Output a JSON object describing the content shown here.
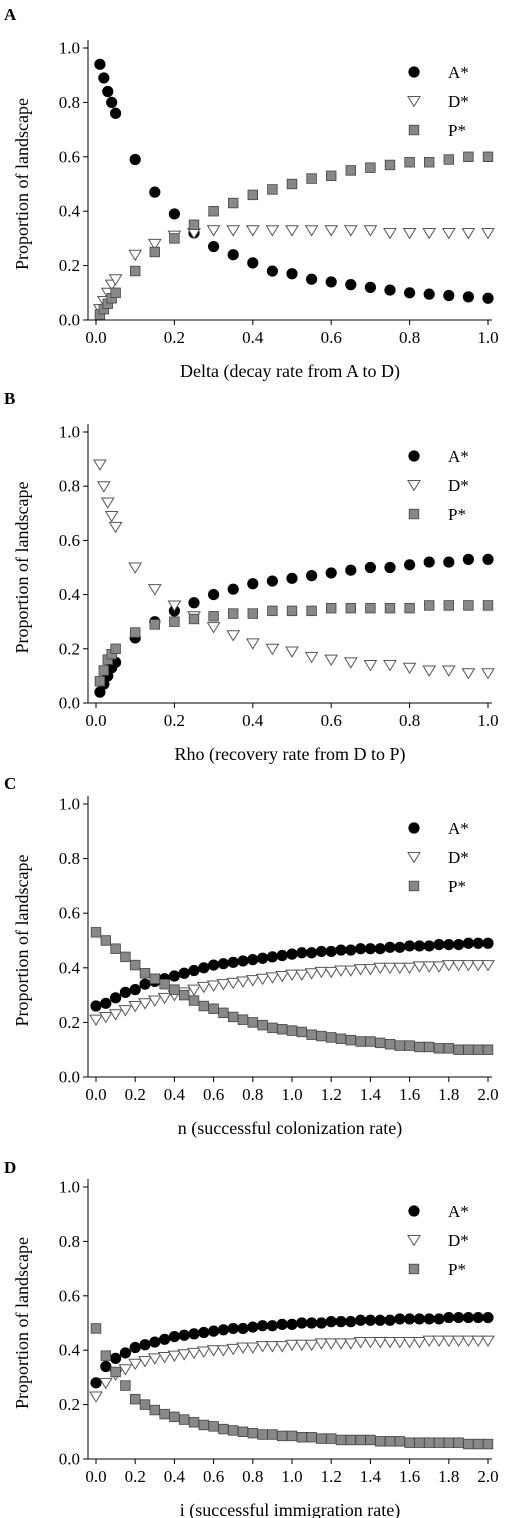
{
  "chart_data": [
    {
      "panel": "A",
      "type": "scatter",
      "xlabel": "Delta (decay rate from A to D)",
      "ylabel": "Proportion of landscape",
      "xlim": [
        0,
        1.0
      ],
      "ylim": [
        0,
        1.0
      ],
      "xticks": [
        "0.0",
        "0.2",
        "0.4",
        "0.6",
        "0.8",
        "1.0"
      ],
      "yticks": [
        "0.0",
        "0.2",
        "0.4",
        "0.6",
        "0.8",
        "1.0"
      ],
      "legend_position": "top-right",
      "series": [
        {
          "name": "A*",
          "marker": "circle",
          "color": "#000000",
          "x": [
            0.01,
            0.02,
            0.03,
            0.04,
            0.05,
            0.1,
            0.15,
            0.2,
            0.25,
            0.3,
            0.35,
            0.4,
            0.45,
            0.5,
            0.55,
            0.6,
            0.65,
            0.7,
            0.75,
            0.8,
            0.85,
            0.9,
            0.95,
            1.0
          ],
          "y": [
            0.94,
            0.89,
            0.84,
            0.8,
            0.76,
            0.59,
            0.47,
            0.39,
            0.32,
            0.27,
            0.24,
            0.21,
            0.18,
            0.17,
            0.15,
            0.14,
            0.13,
            0.12,
            0.11,
            0.1,
            0.095,
            0.09,
            0.085,
            0.08
          ]
        },
        {
          "name": "D*",
          "marker": "triangle-down",
          "color": "#ffffff",
          "x": [
            0.01,
            0.02,
            0.03,
            0.04,
            0.05,
            0.1,
            0.15,
            0.2,
            0.25,
            0.3,
            0.35,
            0.4,
            0.45,
            0.5,
            0.55,
            0.6,
            0.65,
            0.7,
            0.75,
            0.8,
            0.85,
            0.9,
            0.95,
            1.0
          ],
          "y": [
            0.04,
            0.07,
            0.1,
            0.13,
            0.15,
            0.24,
            0.28,
            0.31,
            0.32,
            0.33,
            0.33,
            0.33,
            0.33,
            0.33,
            0.33,
            0.33,
            0.33,
            0.33,
            0.32,
            0.32,
            0.32,
            0.32,
            0.32,
            0.32
          ]
        },
        {
          "name": "P*",
          "marker": "square",
          "color": "#888888",
          "x": [
            0.01,
            0.02,
            0.03,
            0.04,
            0.05,
            0.1,
            0.15,
            0.2,
            0.25,
            0.3,
            0.35,
            0.4,
            0.45,
            0.5,
            0.55,
            0.6,
            0.65,
            0.7,
            0.75,
            0.8,
            0.85,
            0.9,
            0.95,
            1.0
          ],
          "y": [
            0.02,
            0.04,
            0.06,
            0.08,
            0.1,
            0.18,
            0.25,
            0.3,
            0.35,
            0.4,
            0.43,
            0.46,
            0.48,
            0.5,
            0.52,
            0.53,
            0.55,
            0.56,
            0.57,
            0.58,
            0.58,
            0.59,
            0.6,
            0.6
          ]
        }
      ]
    },
    {
      "panel": "B",
      "type": "scatter",
      "xlabel": "Rho (recovery rate from D to P)",
      "ylabel": "Proportion of landscape",
      "xlim": [
        0,
        1.0
      ],
      "ylim": [
        0,
        1.0
      ],
      "xticks": [
        "0.0",
        "0.2",
        "0.4",
        "0.6",
        "0.8",
        "1.0"
      ],
      "yticks": [
        "0.0",
        "0.2",
        "0.4",
        "0.6",
        "0.8",
        "1.0"
      ],
      "legend_position": "top-right",
      "series": [
        {
          "name": "A*",
          "marker": "circle",
          "color": "#000000",
          "x": [
            0.01,
            0.02,
            0.03,
            0.04,
            0.05,
            0.1,
            0.15,
            0.2,
            0.25,
            0.3,
            0.35,
            0.4,
            0.45,
            0.5,
            0.55,
            0.6,
            0.65,
            0.7,
            0.75,
            0.8,
            0.85,
            0.9,
            0.95,
            1.0
          ],
          "y": [
            0.04,
            0.07,
            0.1,
            0.13,
            0.15,
            0.24,
            0.3,
            0.34,
            0.37,
            0.4,
            0.42,
            0.44,
            0.45,
            0.46,
            0.47,
            0.48,
            0.49,
            0.5,
            0.5,
            0.51,
            0.52,
            0.52,
            0.53,
            0.53
          ]
        },
        {
          "name": "D*",
          "marker": "triangle-down",
          "color": "#ffffff",
          "x": [
            0.01,
            0.02,
            0.03,
            0.04,
            0.05,
            0.1,
            0.15,
            0.2,
            0.25,
            0.3,
            0.35,
            0.4,
            0.45,
            0.5,
            0.55,
            0.6,
            0.65,
            0.7,
            0.75,
            0.8,
            0.85,
            0.9,
            0.95,
            1.0
          ],
          "y": [
            0.88,
            0.8,
            0.74,
            0.69,
            0.65,
            0.5,
            0.42,
            0.36,
            0.32,
            0.28,
            0.25,
            0.22,
            0.2,
            0.19,
            0.17,
            0.16,
            0.15,
            0.14,
            0.14,
            0.13,
            0.12,
            0.12,
            0.11,
            0.11
          ]
        },
        {
          "name": "P*",
          "marker": "square",
          "color": "#888888",
          "x": [
            0.01,
            0.02,
            0.03,
            0.04,
            0.05,
            0.1,
            0.15,
            0.2,
            0.25,
            0.3,
            0.35,
            0.4,
            0.45,
            0.5,
            0.55,
            0.6,
            0.65,
            0.7,
            0.75,
            0.8,
            0.85,
            0.9,
            0.95,
            1.0
          ],
          "y": [
            0.08,
            0.12,
            0.16,
            0.18,
            0.2,
            0.26,
            0.29,
            0.3,
            0.31,
            0.32,
            0.33,
            0.33,
            0.34,
            0.34,
            0.34,
            0.35,
            0.35,
            0.35,
            0.35,
            0.35,
            0.36,
            0.36,
            0.36,
            0.36
          ]
        }
      ]
    },
    {
      "panel": "C",
      "type": "scatter",
      "xlabel": "n (successful colonization rate)",
      "ylabel": "Proportion of landscape",
      "xlim": [
        0,
        2.0
      ],
      "ylim": [
        0,
        1.0
      ],
      "xticks": [
        "0.0",
        "0.2",
        "0.4",
        "0.6",
        "0.8",
        "1.0",
        "1.2",
        "1.4",
        "1.6",
        "1.8",
        "2.0"
      ],
      "yticks": [
        "0.0",
        "0.2",
        "0.4",
        "0.6",
        "0.8",
        "1.0"
      ],
      "legend_position": "top-right",
      "series": [
        {
          "name": "A*",
          "marker": "circle",
          "color": "#000000",
          "x": [
            0.0,
            0.05,
            0.1,
            0.15,
            0.2,
            0.25,
            0.3,
            0.35,
            0.4,
            0.45,
            0.5,
            0.55,
            0.6,
            0.65,
            0.7,
            0.75,
            0.8,
            0.85,
            0.9,
            0.95,
            1.0,
            1.05,
            1.1,
            1.15,
            1.2,
            1.25,
            1.3,
            1.35,
            1.4,
            1.45,
            1.5,
            1.55,
            1.6,
            1.65,
            1.7,
            1.75,
            1.8,
            1.85,
            1.9,
            1.95,
            2.0
          ],
          "y": [
            0.26,
            0.27,
            0.29,
            0.31,
            0.32,
            0.34,
            0.35,
            0.36,
            0.37,
            0.38,
            0.39,
            0.4,
            0.41,
            0.415,
            0.42,
            0.425,
            0.43,
            0.435,
            0.44,
            0.445,
            0.45,
            0.455,
            0.455,
            0.46,
            0.46,
            0.465,
            0.465,
            0.47,
            0.47,
            0.47,
            0.475,
            0.475,
            0.48,
            0.48,
            0.48,
            0.485,
            0.485,
            0.485,
            0.49,
            0.49,
            0.49
          ]
        },
        {
          "name": "D*",
          "marker": "triangle-down",
          "color": "#ffffff",
          "x": [
            0.0,
            0.05,
            0.1,
            0.15,
            0.2,
            0.25,
            0.3,
            0.35,
            0.4,
            0.45,
            0.5,
            0.55,
            0.6,
            0.65,
            0.7,
            0.75,
            0.8,
            0.85,
            0.9,
            0.95,
            1.0,
            1.05,
            1.1,
            1.15,
            1.2,
            1.25,
            1.3,
            1.35,
            1.4,
            1.45,
            1.5,
            1.55,
            1.6,
            1.65,
            1.7,
            1.75,
            1.8,
            1.85,
            1.9,
            1.95,
            2.0
          ],
          "y": [
            0.21,
            0.22,
            0.23,
            0.245,
            0.26,
            0.27,
            0.28,
            0.29,
            0.3,
            0.31,
            0.32,
            0.33,
            0.335,
            0.34,
            0.345,
            0.35,
            0.355,
            0.36,
            0.365,
            0.37,
            0.375,
            0.375,
            0.38,
            0.385,
            0.385,
            0.39,
            0.39,
            0.395,
            0.395,
            0.4,
            0.4,
            0.4,
            0.4,
            0.405,
            0.405,
            0.405,
            0.41,
            0.41,
            0.41,
            0.41,
            0.41
          ]
        },
        {
          "name": "P*",
          "marker": "square",
          "color": "#888888",
          "x": [
            0.0,
            0.05,
            0.1,
            0.15,
            0.2,
            0.25,
            0.3,
            0.35,
            0.4,
            0.45,
            0.5,
            0.55,
            0.6,
            0.65,
            0.7,
            0.75,
            0.8,
            0.85,
            0.9,
            0.95,
            1.0,
            1.05,
            1.1,
            1.15,
            1.2,
            1.25,
            1.3,
            1.35,
            1.4,
            1.45,
            1.5,
            1.55,
            1.6,
            1.65,
            1.7,
            1.75,
            1.8,
            1.85,
            1.9,
            1.95,
            2.0
          ],
          "y": [
            0.53,
            0.5,
            0.47,
            0.44,
            0.41,
            0.38,
            0.36,
            0.34,
            0.32,
            0.3,
            0.28,
            0.26,
            0.25,
            0.235,
            0.22,
            0.21,
            0.2,
            0.19,
            0.18,
            0.175,
            0.17,
            0.165,
            0.155,
            0.15,
            0.145,
            0.14,
            0.135,
            0.13,
            0.13,
            0.125,
            0.12,
            0.115,
            0.115,
            0.11,
            0.11,
            0.105,
            0.105,
            0.1,
            0.1,
            0.1,
            0.1
          ]
        }
      ]
    },
    {
      "panel": "D",
      "type": "scatter",
      "xlabel": "i (successful immigration rate)",
      "ylabel": "Proportion of landscape",
      "xlim": [
        0,
        2.0
      ],
      "ylim": [
        0,
        1.0
      ],
      "xticks": [
        "0.0",
        "0.2",
        "0.4",
        "0.6",
        "0.8",
        "1.0",
        "1.2",
        "1.4",
        "1.6",
        "1.8",
        "2.0"
      ],
      "yticks": [
        "0.0",
        "0.2",
        "0.4",
        "0.6",
        "0.8",
        "1.0"
      ],
      "legend_position": "top-right",
      "series": [
        {
          "name": "A*",
          "marker": "circle",
          "color": "#000000",
          "x": [
            0.0,
            0.05,
            0.1,
            0.15,
            0.2,
            0.25,
            0.3,
            0.35,
            0.4,
            0.45,
            0.5,
            0.55,
            0.6,
            0.65,
            0.7,
            0.75,
            0.8,
            0.85,
            0.9,
            0.95,
            1.0,
            1.05,
            1.1,
            1.15,
            1.2,
            1.25,
            1.3,
            1.35,
            1.4,
            1.45,
            1.5,
            1.55,
            1.6,
            1.65,
            1.7,
            1.75,
            1.8,
            1.85,
            1.9,
            1.95,
            2.0
          ],
          "y": [
            0.28,
            0.34,
            0.37,
            0.39,
            0.41,
            0.42,
            0.43,
            0.44,
            0.45,
            0.455,
            0.46,
            0.465,
            0.47,
            0.475,
            0.48,
            0.48,
            0.485,
            0.49,
            0.49,
            0.495,
            0.495,
            0.5,
            0.5,
            0.5,
            0.505,
            0.505,
            0.505,
            0.51,
            0.51,
            0.51,
            0.51,
            0.515,
            0.515,
            0.515,
            0.515,
            0.515,
            0.52,
            0.52,
            0.52,
            0.52,
            0.52
          ]
        },
        {
          "name": "D*",
          "marker": "triangle-down",
          "color": "#ffffff",
          "x": [
            0.0,
            0.05,
            0.1,
            0.15,
            0.2,
            0.25,
            0.3,
            0.35,
            0.4,
            0.45,
            0.5,
            0.55,
            0.6,
            0.65,
            0.7,
            0.75,
            0.8,
            0.85,
            0.9,
            0.95,
            1.0,
            1.05,
            1.1,
            1.15,
            1.2,
            1.25,
            1.3,
            1.35,
            1.4,
            1.45,
            1.5,
            1.55,
            1.6,
            1.65,
            1.7,
            1.75,
            1.8,
            1.85,
            1.9,
            1.95,
            2.0
          ],
          "y": [
            0.23,
            0.28,
            0.31,
            0.33,
            0.35,
            0.36,
            0.37,
            0.375,
            0.38,
            0.385,
            0.39,
            0.395,
            0.4,
            0.4,
            0.405,
            0.41,
            0.41,
            0.415,
            0.415,
            0.415,
            0.42,
            0.42,
            0.42,
            0.425,
            0.425,
            0.425,
            0.425,
            0.43,
            0.43,
            0.43,
            0.43,
            0.43,
            0.43,
            0.43,
            0.435,
            0.435,
            0.435,
            0.435,
            0.435,
            0.435,
            0.435
          ]
        },
        {
          "name": "P*",
          "marker": "square",
          "color": "#888888",
          "x": [
            0.0,
            0.05,
            0.1,
            0.15,
            0.2,
            0.25,
            0.3,
            0.35,
            0.4,
            0.45,
            0.5,
            0.55,
            0.6,
            0.65,
            0.7,
            0.75,
            0.8,
            0.85,
            0.9,
            0.95,
            1.0,
            1.05,
            1.1,
            1.15,
            1.2,
            1.25,
            1.3,
            1.35,
            1.4,
            1.45,
            1.5,
            1.55,
            1.6,
            1.65,
            1.7,
            1.75,
            1.8,
            1.85,
            1.9,
            1.95,
            2.0
          ],
          "y": [
            0.48,
            0.38,
            0.32,
            0.27,
            0.22,
            0.2,
            0.18,
            0.165,
            0.155,
            0.145,
            0.135,
            0.125,
            0.12,
            0.11,
            0.105,
            0.1,
            0.095,
            0.09,
            0.09,
            0.085,
            0.085,
            0.08,
            0.08,
            0.075,
            0.075,
            0.07,
            0.07,
            0.07,
            0.07,
            0.065,
            0.065,
            0.065,
            0.06,
            0.06,
            0.06,
            0.06,
            0.06,
            0.06,
            0.055,
            0.055,
            0.055
          ]
        }
      ]
    }
  ]
}
